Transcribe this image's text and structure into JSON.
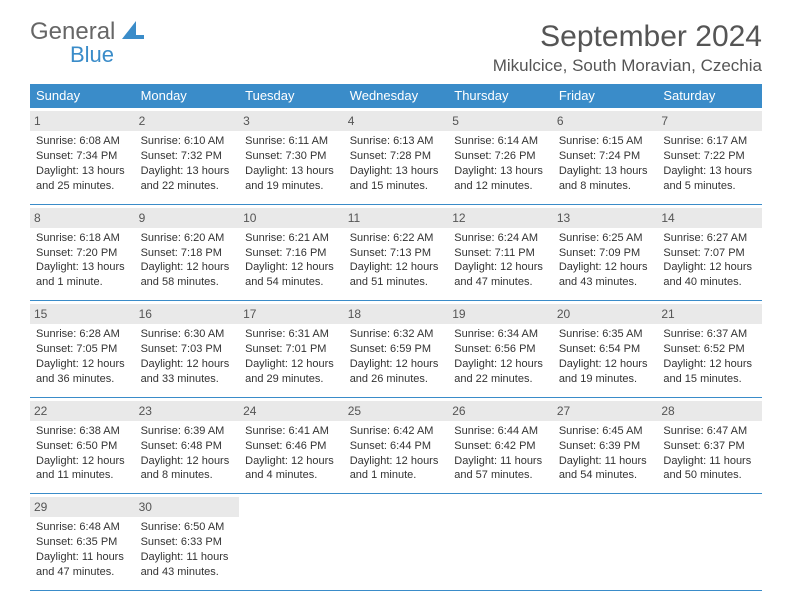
{
  "brand": {
    "text1": "General",
    "text2": "Blue",
    "color_gray": "#666666",
    "color_blue": "#3a8cc9"
  },
  "header": {
    "month_title": "September 2024",
    "location": "Mikulcice, South Moravian, Czechia"
  },
  "colors": {
    "header_bg": "#3a8cc9",
    "header_text": "#ffffff",
    "daynum_bg": "#e9e9e9",
    "text": "#333333",
    "border": "#3a8cc9"
  },
  "weekdays": [
    "Sunday",
    "Monday",
    "Tuesday",
    "Wednesday",
    "Thursday",
    "Friday",
    "Saturday"
  ],
  "weeks": [
    [
      {
        "n": "1",
        "sr": "Sunrise: 6:08 AM",
        "ss": "Sunset: 7:34 PM",
        "d1": "Daylight: 13 hours",
        "d2": "and 25 minutes."
      },
      {
        "n": "2",
        "sr": "Sunrise: 6:10 AM",
        "ss": "Sunset: 7:32 PM",
        "d1": "Daylight: 13 hours",
        "d2": "and 22 minutes."
      },
      {
        "n": "3",
        "sr": "Sunrise: 6:11 AM",
        "ss": "Sunset: 7:30 PM",
        "d1": "Daylight: 13 hours",
        "d2": "and 19 minutes."
      },
      {
        "n": "4",
        "sr": "Sunrise: 6:13 AM",
        "ss": "Sunset: 7:28 PM",
        "d1": "Daylight: 13 hours",
        "d2": "and 15 minutes."
      },
      {
        "n": "5",
        "sr": "Sunrise: 6:14 AM",
        "ss": "Sunset: 7:26 PM",
        "d1": "Daylight: 13 hours",
        "d2": "and 12 minutes."
      },
      {
        "n": "6",
        "sr": "Sunrise: 6:15 AM",
        "ss": "Sunset: 7:24 PM",
        "d1": "Daylight: 13 hours",
        "d2": "and 8 minutes."
      },
      {
        "n": "7",
        "sr": "Sunrise: 6:17 AM",
        "ss": "Sunset: 7:22 PM",
        "d1": "Daylight: 13 hours",
        "d2": "and 5 minutes."
      }
    ],
    [
      {
        "n": "8",
        "sr": "Sunrise: 6:18 AM",
        "ss": "Sunset: 7:20 PM",
        "d1": "Daylight: 13 hours",
        "d2": "and 1 minute."
      },
      {
        "n": "9",
        "sr": "Sunrise: 6:20 AM",
        "ss": "Sunset: 7:18 PM",
        "d1": "Daylight: 12 hours",
        "d2": "and 58 minutes."
      },
      {
        "n": "10",
        "sr": "Sunrise: 6:21 AM",
        "ss": "Sunset: 7:16 PM",
        "d1": "Daylight: 12 hours",
        "d2": "and 54 minutes."
      },
      {
        "n": "11",
        "sr": "Sunrise: 6:22 AM",
        "ss": "Sunset: 7:13 PM",
        "d1": "Daylight: 12 hours",
        "d2": "and 51 minutes."
      },
      {
        "n": "12",
        "sr": "Sunrise: 6:24 AM",
        "ss": "Sunset: 7:11 PM",
        "d1": "Daylight: 12 hours",
        "d2": "and 47 minutes."
      },
      {
        "n": "13",
        "sr": "Sunrise: 6:25 AM",
        "ss": "Sunset: 7:09 PM",
        "d1": "Daylight: 12 hours",
        "d2": "and 43 minutes."
      },
      {
        "n": "14",
        "sr": "Sunrise: 6:27 AM",
        "ss": "Sunset: 7:07 PM",
        "d1": "Daylight: 12 hours",
        "d2": "and 40 minutes."
      }
    ],
    [
      {
        "n": "15",
        "sr": "Sunrise: 6:28 AM",
        "ss": "Sunset: 7:05 PM",
        "d1": "Daylight: 12 hours",
        "d2": "and 36 minutes."
      },
      {
        "n": "16",
        "sr": "Sunrise: 6:30 AM",
        "ss": "Sunset: 7:03 PM",
        "d1": "Daylight: 12 hours",
        "d2": "and 33 minutes."
      },
      {
        "n": "17",
        "sr": "Sunrise: 6:31 AM",
        "ss": "Sunset: 7:01 PM",
        "d1": "Daylight: 12 hours",
        "d2": "and 29 minutes."
      },
      {
        "n": "18",
        "sr": "Sunrise: 6:32 AM",
        "ss": "Sunset: 6:59 PM",
        "d1": "Daylight: 12 hours",
        "d2": "and 26 minutes."
      },
      {
        "n": "19",
        "sr": "Sunrise: 6:34 AM",
        "ss": "Sunset: 6:56 PM",
        "d1": "Daylight: 12 hours",
        "d2": "and 22 minutes."
      },
      {
        "n": "20",
        "sr": "Sunrise: 6:35 AM",
        "ss": "Sunset: 6:54 PM",
        "d1": "Daylight: 12 hours",
        "d2": "and 19 minutes."
      },
      {
        "n": "21",
        "sr": "Sunrise: 6:37 AM",
        "ss": "Sunset: 6:52 PM",
        "d1": "Daylight: 12 hours",
        "d2": "and 15 minutes."
      }
    ],
    [
      {
        "n": "22",
        "sr": "Sunrise: 6:38 AM",
        "ss": "Sunset: 6:50 PM",
        "d1": "Daylight: 12 hours",
        "d2": "and 11 minutes."
      },
      {
        "n": "23",
        "sr": "Sunrise: 6:39 AM",
        "ss": "Sunset: 6:48 PM",
        "d1": "Daylight: 12 hours",
        "d2": "and 8 minutes."
      },
      {
        "n": "24",
        "sr": "Sunrise: 6:41 AM",
        "ss": "Sunset: 6:46 PM",
        "d1": "Daylight: 12 hours",
        "d2": "and 4 minutes."
      },
      {
        "n": "25",
        "sr": "Sunrise: 6:42 AM",
        "ss": "Sunset: 6:44 PM",
        "d1": "Daylight: 12 hours",
        "d2": "and 1 minute."
      },
      {
        "n": "26",
        "sr": "Sunrise: 6:44 AM",
        "ss": "Sunset: 6:42 PM",
        "d1": "Daylight: 11 hours",
        "d2": "and 57 minutes."
      },
      {
        "n": "27",
        "sr": "Sunrise: 6:45 AM",
        "ss": "Sunset: 6:39 PM",
        "d1": "Daylight: 11 hours",
        "d2": "and 54 minutes."
      },
      {
        "n": "28",
        "sr": "Sunrise: 6:47 AM",
        "ss": "Sunset: 6:37 PM",
        "d1": "Daylight: 11 hours",
        "d2": "and 50 minutes."
      }
    ],
    [
      {
        "n": "29",
        "sr": "Sunrise: 6:48 AM",
        "ss": "Sunset: 6:35 PM",
        "d1": "Daylight: 11 hours",
        "d2": "and 47 minutes."
      },
      {
        "n": "30",
        "sr": "Sunrise: 6:50 AM",
        "ss": "Sunset: 6:33 PM",
        "d1": "Daylight: 11 hours",
        "d2": "and 43 minutes."
      },
      null,
      null,
      null,
      null,
      null
    ]
  ]
}
